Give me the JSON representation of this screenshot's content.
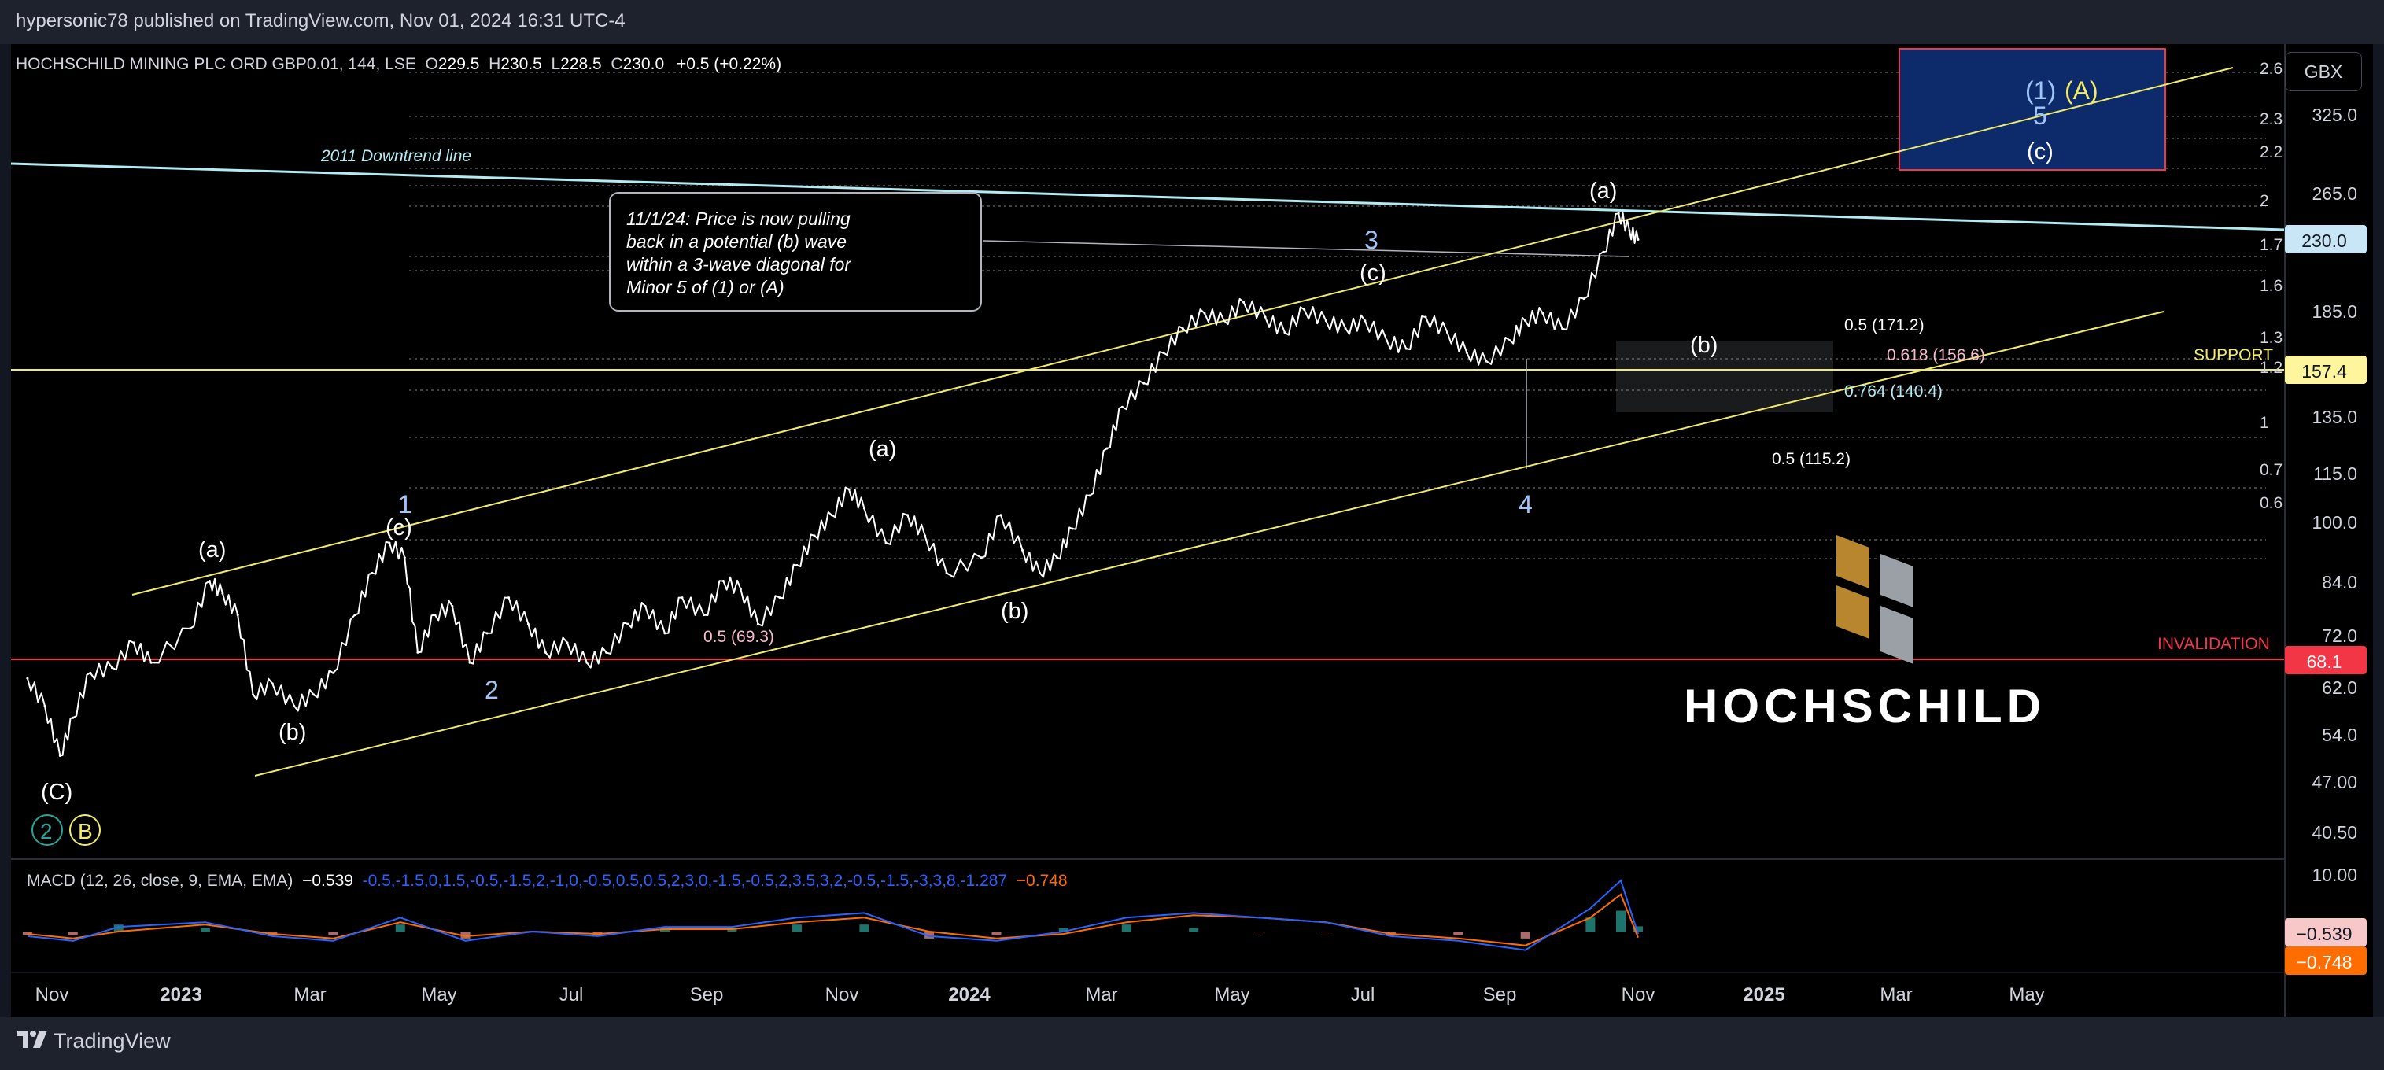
{
  "header": {
    "published": "hypersonic78 published on TradingView.com, Nov 01, 2024 16:31 UTC-4"
  },
  "footer": {
    "brand": "TradingView"
  },
  "symbol": {
    "name": "HOCHSCHILD MINING PLC ORD GBP0.01, 144, LSE",
    "open_label": "O",
    "open": "229.5",
    "high_label": "H",
    "high": "230.5",
    "low_label": "L",
    "low": "228.5",
    "close_label": "C",
    "close": "230.0",
    "change": "+0.5 (+0.22%)"
  },
  "currency": "GBX",
  "note": {
    "lines": [
      "11/1/24: Price is now pulling",
      "back in a potential (b) wave",
      "within a 3-wave diagonal for",
      "Minor 5 of (1) or (A)"
    ]
  },
  "logo": {
    "text": "HOCHSCHILD"
  },
  "chart_data": {
    "type": "line",
    "title": "HOCHSCHILD MINING PLC ORD GBP0.01, 144, LSE",
    "scale": "log",
    "ylim": [
      38,
      280
    ],
    "x_ticks": [
      "Nov",
      "2023",
      "Mar",
      "May",
      "Jul",
      "Sep",
      "Nov",
      "2024",
      "Mar",
      "May",
      "Jul",
      "Sep",
      "Nov",
      "2025",
      "Mar",
      "May"
    ],
    "y_ticks": [
      "325.0",
      "265.0",
      "185.0",
      "135.0",
      "115.0",
      "100.0",
      "84.0",
      "72.0",
      "62.0",
      "54.0",
      "47.00",
      "40.50"
    ],
    "series": [
      {
        "name": "",
        "x": [
          "2022-10-20",
          "2022-10-28",
          "2022-11-04",
          "2022-11-10",
          "2022-11-18",
          "2022-11-28",
          "2022-12-08",
          "2022-12-16",
          "2023-01-03",
          "2023-01-12",
          "2023-01-18",
          "2023-01-25",
          "2023-02-01",
          "2023-02-10",
          "2023-02-20",
          "2023-03-01",
          "2023-03-10",
          "2023-03-20",
          "2023-03-28",
          "2023-04-05",
          "2023-04-12",
          "2023-04-18",
          "2023-04-26",
          "2023-05-04",
          "2023-05-12",
          "2023-05-20",
          "2023-05-30",
          "2023-06-08",
          "2023-06-16",
          "2023-06-26",
          "2023-07-05",
          "2023-07-14",
          "2023-07-24",
          "2023-08-01",
          "2023-08-10",
          "2023-08-18",
          "2023-08-28",
          "2023-09-06",
          "2023-09-14",
          "2023-09-22",
          "2023-10-02",
          "2023-10-10",
          "2023-10-18",
          "2023-10-26",
          "2023-11-03",
          "2023-11-10",
          "2023-11-20",
          "2023-11-30",
          "2023-12-08",
          "2023-12-18",
          "2024-01-03",
          "2024-01-12",
          "2024-01-22",
          "2024-01-30",
          "2024-02-07",
          "2024-02-14",
          "2024-02-22",
          "2024-03-01",
          "2024-03-08",
          "2024-03-18",
          "2024-03-27",
          "2024-04-05",
          "2024-04-15",
          "2024-04-24",
          "2024-05-03",
          "2024-05-13",
          "2024-05-22",
          "2024-05-31",
          "2024-06-10",
          "2024-06-19",
          "2024-06-28",
          "2024-07-08",
          "2024-07-17",
          "2024-07-26",
          "2024-08-05",
          "2024-08-14",
          "2024-08-23",
          "2024-09-03",
          "2024-09-10",
          "2024-09-18",
          "2024-09-27",
          "2024-10-07",
          "2024-10-16",
          "2024-10-23",
          "2024-10-28",
          "2024-11-01"
        ],
        "y": [
          65,
          60,
          52,
          58,
          66,
          67,
          72,
          68,
          75,
          86,
          83,
          78,
          62,
          64,
          60,
          62,
          66,
          78,
          88,
          96,
          92,
          70,
          78,
          80,
          68,
          74,
          82,
          76,
          70,
          72,
          68,
          70,
          76,
          80,
          74,
          82,
          78,
          86,
          84,
          76,
          82,
          90,
          98,
          104,
          112,
          106,
          96,
          104,
          98,
          88,
          92,
          104,
          94,
          88,
          92,
          100,
          110,
          126,
          142,
          152,
          166,
          178,
          186,
          182,
          192,
          184,
          176,
          188,
          182,
          178,
          182,
          172,
          168,
          184,
          176,
          166,
          162,
          172,
          182,
          186,
          178,
          194,
          222,
          248,
          236,
          230
        ]
      }
    ],
    "annotations": [
      "2011 Downtrend line",
      "(a)",
      "(b)",
      "(c)",
      "1",
      "2",
      "3",
      "4",
      "5",
      "(C)",
      "(1)",
      "(A)",
      "SUPPORT",
      "INVALIDATION",
      "0.5 (69.3)",
      "0.5 (171.2)",
      "0.618 (156.6)",
      "0.764 (140.4)",
      "0.5 (115.2)"
    ],
    "price_labels": {
      "current": "230.0",
      "support": "157.4",
      "invalidation": "68.1"
    },
    "fib_axis_labels": [
      "2.6",
      "2.3",
      "2.2",
      "2",
      "1.7",
      "1.6",
      "1.3",
      "1.2",
      "1",
      "0.7",
      "0.6"
    ],
    "circled_labels": [
      "2",
      "B"
    ],
    "macd": {
      "label": "MACD (12, 26, close, 9, EMA, EMA)",
      "value": "−0.539",
      "signal": [
        -0.5,
        -1.5,
        0,
        1.5,
        -0.5,
        -1.5,
        2,
        -1,
        0,
        -0.5,
        0.5,
        0.5,
        2,
        3,
        0,
        -1.5,
        -0.5,
        2,
        3.5,
        3,
        2,
        -0.5,
        -1.5,
        -3,
        3,
        8,
        -1.287
      ],
      "hist": "−0.748",
      "y_ticks": [
        "10.00"
      ],
      "x": [
        "2022-10-20",
        "2022-11-10",
        "2022-12-01",
        "2023-01-10",
        "2023-02-10",
        "2023-03-10",
        "2023-04-10",
        "2023-05-10",
        "2023-06-10",
        "2023-07-10",
        "2023-08-10",
        "2023-09-10",
        "2023-10-10",
        "2023-11-10",
        "2023-12-10",
        "2024-01-10",
        "2024-02-10",
        "2024-03-10",
        "2024-04-10",
        "2024-05-10",
        "2024-06-10",
        "2024-07-10",
        "2024-08-10",
        "2024-09-10",
        "2024-10-10",
        "2024-10-24",
        "2024-11-01"
      ],
      "macd": [
        -1,
        -2,
        1,
        2,
        -1,
        -2,
        3,
        -2,
        0,
        -1,
        1,
        1,
        3,
        4,
        -1,
        -2,
        0,
        3,
        4,
        3,
        2,
        -1,
        -2,
        -4,
        5,
        11,
        -0.539
      ]
    },
    "colors": {
      "price": "#ffffff",
      "fib": "#f1ea6a",
      "downtrend": "#b2ebf2",
      "invalidation": "#f23645",
      "support": "#f1ea6a",
      "macd": "#2962ff",
      "signal": "#ff6d00",
      "target_box": "#0d2a6b",
      "logo_gold": "#b8862e",
      "logo_gray": "#9aa0a6"
    }
  }
}
